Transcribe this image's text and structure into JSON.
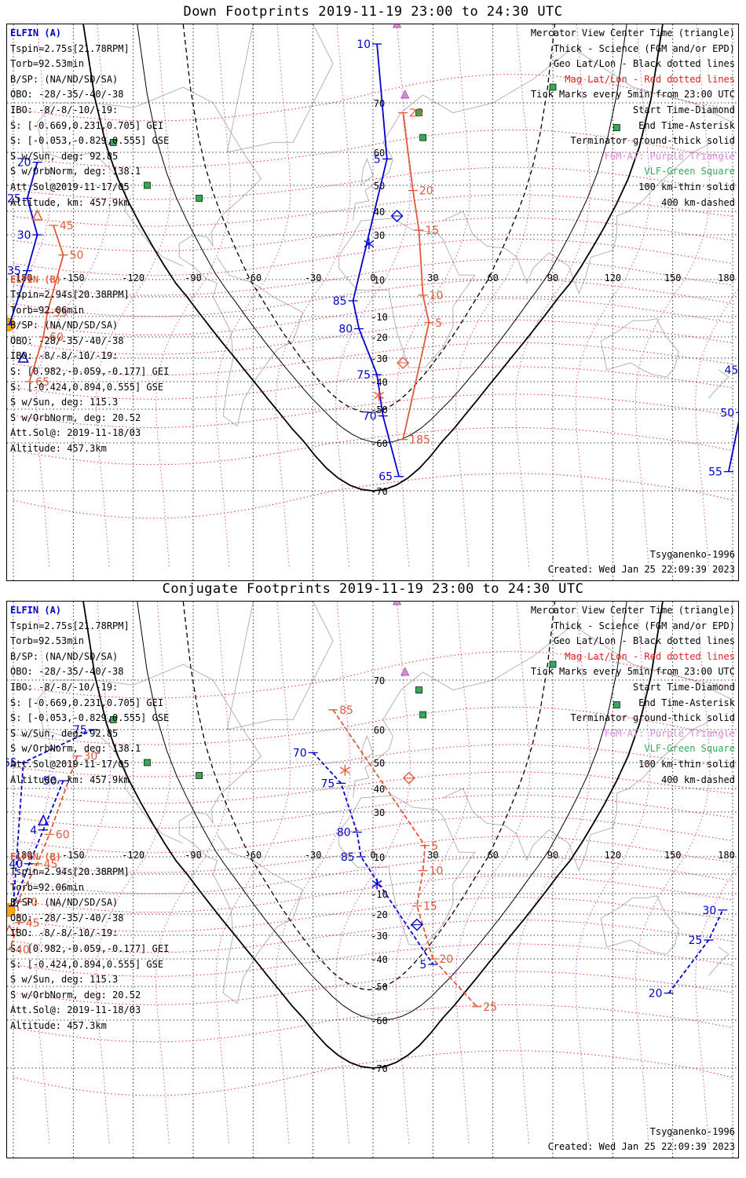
{
  "colors": {
    "elfin_a": "#0000cc",
    "elfin_b": "#e05a3a",
    "geo_grid": "#000000",
    "mag_grid": "#dd2222",
    "mag_lon": "#cc44cc",
    "coast": "#b4b4b4",
    "vlf": "#33aa55",
    "fgm": "#cc66cc",
    "sun": "#ffaa00"
  },
  "info_a": {
    "title": "ELFIN (A)",
    "tspin": "Tspin=2.75s[21.78RPM]",
    "torb": "Torb=92.53min",
    "bsp": "B/SP: (NA/ND/SD/SA)",
    "obo": "OBO: -28/-35/-40/-38",
    "ibo": "IBO: -8/-8/-10/-19:",
    "s_gei": "S: [-0.669,0.231,0.705] GEI",
    "s_gse": "S: [-0.053,-0.829,0.555] GSE",
    "s_sun": "S w/Sun, deg: 92.85",
    "s_orb": "S w/OrbNorm, deg: 138.1",
    "attsol": "Att.Sol@2019-11-17/05",
    "alt": "Altitude, km: 457.9km"
  },
  "info_b": {
    "title": "ELFIN (B)",
    "tspin": "Tspin=2.94s[20.38RPM]",
    "torb": "Torb=92.06min",
    "bsp": "B/SP: (NA/ND/SD/SA)",
    "obo": "OBO: -28/-35/-40/-38",
    "ibo": "IBO: -8/-8/-10/-19:",
    "s_gei": "S: [0.982,-0.059,-0.177] GEI",
    "s_gse": "S: [-0.424,0.894,0.555] GSE",
    "s_sun": "S w/Sun, deg: 115.3",
    "s_orb": "S w/OrbNorm, deg: 20.52",
    "attsol": "Att.Sol@: 2019-11-18/03",
    "alt": "Altitude: 457.3km"
  },
  "legend": {
    "l1": "Mercator View Center Time (triangle)",
    "l2": "Thick - Science (FGM and/or EPD)",
    "l3": "Geo Lat/Lon - Black dotted lines",
    "l4": "Mag Lat/Lon - Red dotted lines",
    "l5": "Tick Marks every 5min from 23:00 UTC",
    "l6": "Start Time-Diamond",
    "l7": "End Time-Asterisk",
    "l8": "Terminator ground-thick solid",
    "l9": "FGM·AT: Purple Triangle",
    "l10": "VLF-Green Square",
    "l11": "100 km-thin solid",
    "l12": "400 km-dashed"
  },
  "footer": {
    "model": "Tsyganenko-1996",
    "created": "Created: Wed Jan 25 22:09:39 2023"
  },
  "grid": {
    "lon_labels": [
      "-180",
      "-150",
      "-120",
      "-90",
      "-60",
      "-30",
      "0",
      "30",
      "60",
      "90",
      "120",
      "150",
      "180"
    ],
    "lat_labels": [
      "70",
      "60",
      "50",
      "40",
      "30",
      "10",
      "-10",
      "-20",
      "-30",
      "-40",
      "-50",
      "-60",
      "-70"
    ]
  },
  "panels": [
    {
      "title": "Down Footprints 2019-11-19 23:00 to 24:30 UTC",
      "ticks_a": [
        {
          "label": "10",
          "lon": 2,
          "lat": 77.5
        },
        {
          "label": "5",
          "lon": 7,
          "lat": 58
        },
        {
          "label": "85",
          "lon": -10,
          "lat": -2
        },
        {
          "label": "80",
          "lon": -7,
          "lat": -16
        },
        {
          "label": "75",
          "lon": 2,
          "lat": -37
        },
        {
          "label": "70",
          "lon": 5,
          "lat": -52
        },
        {
          "label": "65",
          "lon": 13,
          "lat": -67
        },
        {
          "label": "20",
          "lon": -168,
          "lat": 57
        },
        {
          "label": "25",
          "lon": -173,
          "lat": 45
        },
        {
          "label": "30",
          "lon": -168,
          "lat": 30
        },
        {
          "label": "35",
          "lon": -173,
          "lat": 14
        },
        {
          "label": "40",
          "lon": -182,
          "lat": -14
        },
        {
          "label": "45",
          "lon": 186,
          "lat": -35
        },
        {
          "label": "50",
          "lon": 184,
          "lat": -51
        },
        {
          "label": "55",
          "lon": 178,
          "lat": -66
        }
      ],
      "ticks_b": [
        {
          "label": "25",
          "lon": 15,
          "lat": 68
        },
        {
          "label": "20",
          "lon": 20,
          "lat": 48
        },
        {
          "label": "15",
          "lon": 23,
          "lat": 32
        },
        {
          "label": "10",
          "lon": 25,
          "lat": 1
        },
        {
          "label": "5",
          "lon": 28,
          "lat": -13
        },
        {
          "label": "185",
          "lon": 15,
          "lat": -59
        },
        {
          "label": "45",
          "lon": -160,
          "lat": 34
        },
        {
          "label": "50",
          "lon": -155,
          "lat": 21
        },
        {
          "label": "55",
          "lon": -163,
          "lat": -8
        },
        {
          "label": "60",
          "lon": -165,
          "lat": -20
        },
        {
          "label": "65",
          "lon": -172,
          "lat": -40
        }
      ]
    },
    {
      "title": "Conjugate Footprints 2019-11-19 23:00 to 24:30 UTC",
      "ticks_a": [
        {
          "label": "70",
          "lon": -30,
          "lat": 53
        },
        {
          "label": "75",
          "lon": -16,
          "lat": 42
        },
        {
          "label": "80",
          "lon": -8,
          "lat": 21
        },
        {
          "label": "85",
          "lon": -6,
          "lat": 10
        },
        {
          "label": "5",
          "lon": 30,
          "lat": -42
        },
        {
          "label": "20",
          "lon": 148,
          "lat": -52
        },
        {
          "label": "25",
          "lon": 168,
          "lat": -32
        },
        {
          "label": "30",
          "lon": 175,
          "lat": -18
        },
        {
          "label": "50",
          "lon": -155,
          "lat": 43
        },
        {
          "label": "4",
          "lon": -165,
          "lat": 22
        },
        {
          "label": "40",
          "lon": -172,
          "lat": 6
        },
        {
          "label": "35",
          "lon": -180,
          "lat": -16
        },
        {
          "label": "65",
          "lon": -175,
          "lat": 50
        },
        {
          "label": "75",
          "lon": -140,
          "lat": 60
        }
      ],
      "ticks_b": [
        {
          "label": "85",
          "lon": -20,
          "lat": 64
        },
        {
          "label": "5",
          "lon": 26,
          "lat": 15
        },
        {
          "label": "10",
          "lon": 25,
          "lat": 2
        },
        {
          "label": "15",
          "lon": 22,
          "lat": -16
        },
        {
          "label": "20",
          "lon": 30,
          "lat": -40
        },
        {
          "label": "25",
          "lon": 52,
          "lat": -56
        },
        {
          "label": "30",
          "lon": -148,
          "lat": 52
        },
        {
          "label": "60",
          "lon": -162,
          "lat": 20
        },
        {
          "label": "45",
          "lon": -168,
          "lat": 6
        },
        {
          "label": "70",
          "lon": -178,
          "lat": -14
        },
        {
          "label": "45",
          "lon": -177,
          "lat": -24
        },
        {
          "label": "40",
          "lon": -182,
          "lat": -36
        }
      ]
    }
  ]
}
